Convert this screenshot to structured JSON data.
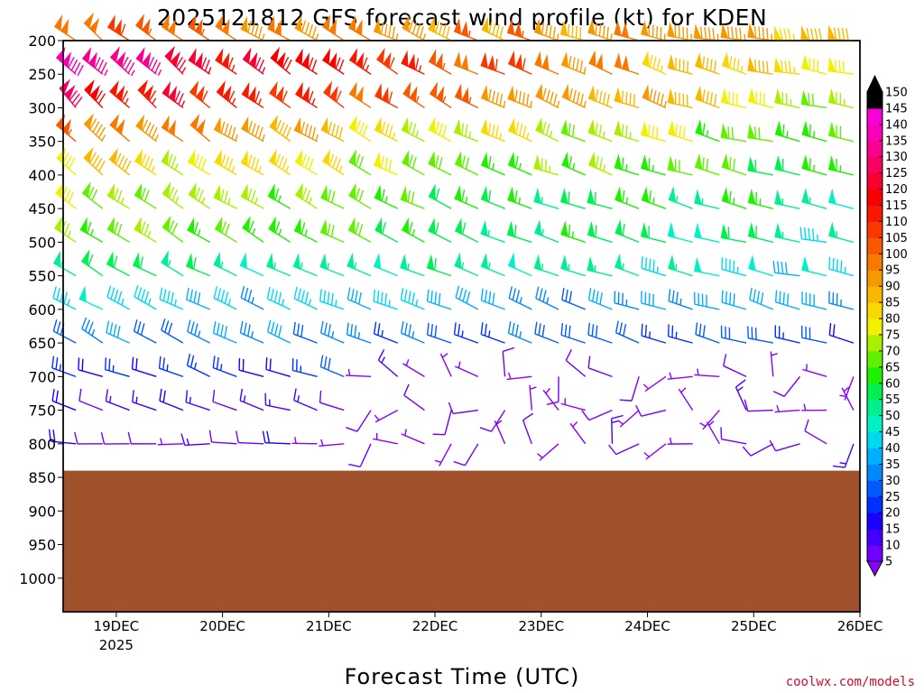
{
  "chart_data": {
    "type": "wind-barb-profile",
    "title": "2025121812 GFS forecast wind profile (kt) for KDEN",
    "xlabel": "Forecast Time (UTC)",
    "ylabel": "",
    "credit": "coolwx.com/models",
    "pressure_levels": [
      200,
      250,
      300,
      350,
      400,
      450,
      500,
      550,
      600,
      650,
      700,
      750,
      800,
      850,
      900,
      950,
      1000
    ],
    "y_tick_labels": [
      "200",
      "250",
      "300",
      "350",
      "400",
      "450",
      "500",
      "550",
      "600",
      "650",
      "700",
      "750",
      "800",
      "850",
      "900",
      "950",
      "1000"
    ],
    "x_tick_labels": [
      "19DEC",
      "20DEC",
      "21DEC",
      "22DEC",
      "23DEC",
      "24DEC",
      "25DEC",
      "26DEC"
    ],
    "x_tick_sublabel": "2025",
    "xlim_days": [
      18.5,
      26.0
    ],
    "ylim_hpa": [
      200,
      1050
    ],
    "terrain_top_hpa": 840,
    "terrain_color": "#a0522d",
    "colorbar": {
      "units": "kt",
      "labels": [
        "5",
        "10",
        "15",
        "20",
        "25",
        "30",
        "35",
        "40",
        "45",
        "50",
        "55",
        "60",
        "65",
        "70",
        "75",
        "80",
        "85",
        "90",
        "95",
        "100",
        "105",
        "110",
        "115",
        "120",
        "125",
        "130",
        "135",
        "140",
        "145",
        "150"
      ],
      "colors": [
        "#8b00ff",
        "#7000ff",
        "#4400ff",
        "#1a00ff",
        "#0030ff",
        "#005cff",
        "#0088ff",
        "#00b0ff",
        "#00d8f0",
        "#00f0c8",
        "#00f090",
        "#00f050",
        "#20f000",
        "#60f000",
        "#a8f000",
        "#f0f000",
        "#f8d800",
        "#f8b800",
        "#f89800",
        "#f87800",
        "#f85800",
        "#f83800",
        "#f81800",
        "#f80000",
        "#f80030",
        "#f80060",
        "#f80090",
        "#f800b8",
        "#f800d8",
        "#000000"
      ]
    },
    "levels": [
      {
        "p": 200,
        "start_dir": 310,
        "end_dir": 275,
        "spd_start": 105,
        "spd_end": 90
      },
      {
        "p": 250,
        "start_dir": 315,
        "end_dir": 280,
        "spd_start": 135,
        "spd_end": 80
      },
      {
        "p": 300,
        "start_dir": 315,
        "end_dir": 280,
        "spd_start": 125,
        "spd_end": 75
      },
      {
        "p": 350,
        "start_dir": 310,
        "end_dir": 280,
        "spd_start": 100,
        "spd_end": 65
      },
      {
        "p": 400,
        "start_dir": 310,
        "end_dir": 280,
        "spd_start": 85,
        "spd_end": 60
      },
      {
        "p": 450,
        "start_dir": 305,
        "end_dir": 280,
        "spd_start": 75,
        "spd_end": 55
      },
      {
        "p": 500,
        "start_dir": 305,
        "end_dir": 280,
        "spd_start": 70,
        "spd_end": 50
      },
      {
        "p": 550,
        "start_dir": 300,
        "end_dir": 280,
        "spd_start": 60,
        "spd_end": 45
      },
      {
        "p": 600,
        "start_dir": 300,
        "end_dir": 285,
        "spd_start": 45,
        "spd_end": 35
      },
      {
        "p": 650,
        "start_dir": 300,
        "end_dir": 285,
        "spd_start": 35,
        "spd_end": 25
      },
      {
        "p": 700,
        "start_dir": 290,
        "end_dir": 290,
        "spd_start": 25,
        "spd_end": 15
      },
      {
        "p": 750,
        "start_dir": 290,
        "end_dir": 280,
        "spd_start": 15,
        "spd_end": 10
      },
      {
        "p": 800,
        "start_dir": 270,
        "end_dir": 260,
        "spd_start": 12,
        "spd_end": 8
      }
    ]
  }
}
